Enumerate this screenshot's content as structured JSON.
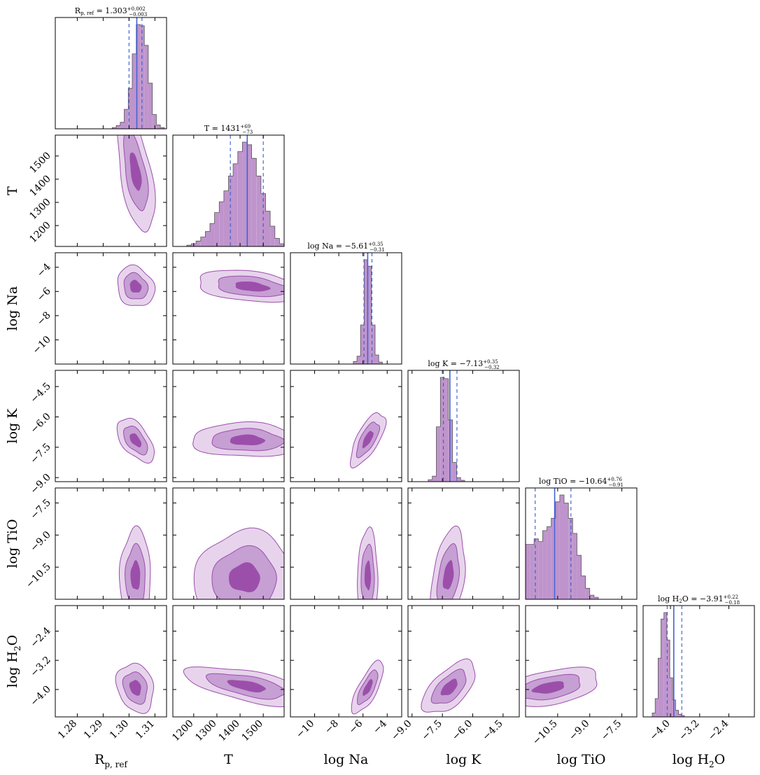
{
  "chart_data": {
    "type": "corner",
    "colors": {
      "hist_fill": "#bf94cc",
      "hist_edge": "#555555",
      "contour_outer": "#e7d4ec",
      "contour_mid": "#c69fd3",
      "contour_inner": "#9b4fab",
      "contour_line": "#9b4fab",
      "median_line": "#4262d6",
      "quantile_line": "#3a5bd0"
    },
    "parameters": [
      {
        "name": "R_p,ref",
        "axis_label_main": "R",
        "axis_label_sub": "p, ref",
        "range": [
          1.2715,
          1.3145
        ],
        "ticks": [
          1.28,
          1.29,
          1.3,
          1.31
        ],
        "tick_labels": [
          "1.28",
          "1.29",
          "1.30",
          "1.31"
        ],
        "median": 1.303,
        "err_plus": 0.002,
        "err_minus": 0.003,
        "title_main": "R",
        "title_sub": "p, ref",
        "title_value": " = 1.303",
        "title_sup": "+0.002",
        "title_subscript": "−0.003",
        "hist": {
          "edges_start": 1.2935,
          "bin_width": 0.00155,
          "counts": [
            2,
            5,
            10,
            30,
            62,
            115,
            160,
            158,
            128,
            70,
            22,
            6,
            2
          ]
        }
      },
      {
        "name": "T",
        "axis_label_main": "T",
        "range": [
          1110,
          1590
        ],
        "ticks": [
          1200,
          1300,
          1400,
          1500
        ],
        "tick_labels": [
          "1200",
          "1300",
          "1400",
          "1500"
        ],
        "median": 1431,
        "err_plus": 69,
        "err_minus": 73,
        "title_value": "T = 1431",
        "title_sup": "+69",
        "title_subscript": "−73",
        "hist": {
          "edges_start": 1170,
          "bin_width": 20,
          "counts": [
            2,
            4,
            8,
            14,
            22,
            34,
            50,
            66,
            82,
            104,
            122,
            140,
            154,
            150,
            130,
            104,
            78,
            52,
            30,
            12,
            4
          ]
        }
      },
      {
        "name": "log Na",
        "axis_label_main": "log Na",
        "range": [
          -12.0,
          -2.8
        ],
        "ticks": [
          -10,
          -8,
          -6,
          -4
        ],
        "tick_labels": [
          "−10",
          "−8",
          "−6",
          "−4"
        ],
        "median": -5.61,
        "err_plus": 0.35,
        "err_minus": 0.31,
        "title_value": "log Na = −5.61",
        "title_sup": "+0.35",
        "title_subscript": "−0.31",
        "hist": {
          "edges_start": -6.8,
          "bin_width": 0.3,
          "counts": [
            4,
            12,
            60,
            160,
            150,
            60,
            14,
            3
          ]
        }
      },
      {
        "name": "log K",
        "axis_label_main": "log K",
        "range": [
          -9.2,
          -3.7
        ],
        "ticks": [
          -9.0,
          -7.5,
          -6.0,
          -4.5
        ],
        "tick_labels": [
          "−9.0",
          "−7.5",
          "−6.0",
          "−4.5"
        ],
        "median": -7.13,
        "err_plus": 0.35,
        "err_minus": 0.32,
        "title_value": "log K = −7.13",
        "title_sup": "+0.35",
        "title_subscript": "−0.32",
        "hist": {
          "edges_start": -8.2,
          "bin_width": 0.2,
          "counts": [
            3,
            8,
            80,
            152,
            150,
            90,
            28,
            6,
            2
          ]
        }
      },
      {
        "name": "log TiO",
        "axis_label_main": "log TiO",
        "range": [
          -12.0,
          -6.8
        ],
        "ticks": [
          -10.5,
          -9.0,
          -7.5
        ],
        "tick_labels": [
          "−10.5",
          "−9.0",
          "−7.5"
        ],
        "median": -10.64,
        "err_plus": 0.76,
        "err_minus": 0.91,
        "title_value": "log TiO = −10.64",
        "title_sup": "+0.76",
        "title_subscript": "−0.91",
        "hist": {
          "edges_start": -12.0,
          "bin_width": 0.2,
          "counts": [
            80,
            80,
            88,
            84,
            100,
            106,
            118,
            142,
            152,
            140,
            118,
            96,
            64,
            34,
            16,
            6,
            3
          ]
        }
      },
      {
        "name": "log H2O",
        "axis_label_main": "log H",
        "axis_label_sub": "2",
        "axis_label_tail": "O",
        "range": [
          -4.75,
          -1.7
        ],
        "ticks": [
          -4.0,
          -3.2,
          -2.4
        ],
        "tick_labels": [
          "−4.0",
          "−3.2",
          "−2.4"
        ],
        "median": -3.91,
        "err_plus": 0.22,
        "err_minus": 0.18,
        "title_value": "log H",
        "title_sub": "2",
        "title_tail": "O = −3.91",
        "title_sup": "+0.22",
        "title_subscript": "−0.18",
        "hist": {
          "edges_start": -4.5,
          "bin_width": 0.08,
          "counts": [
            6,
            28,
            90,
            150,
            160,
            118,
            60,
            26,
            10,
            4,
            2
          ]
        }
      }
    ],
    "density_levels": [
      "outer",
      "mid",
      "inner"
    ],
    "pair_blobs": [
      {
        "row": 1,
        "col": 0,
        "cx": 1.3025,
        "cy": 1431,
        "sx": 0.003,
        "sy": 110,
        "rho": -0.55
      },
      {
        "row": 2,
        "col": 0,
        "cx": 1.3025,
        "cy": -5.6,
        "sx": 0.003,
        "sy": 0.7,
        "rho": -0.15
      },
      {
        "row": 2,
        "col": 1,
        "cx": 1450,
        "cy": -5.6,
        "sx": 100,
        "sy": 0.55,
        "rho": -0.35
      },
      {
        "row": 3,
        "col": 0,
        "cx": 1.3025,
        "cy": -7.15,
        "sx": 0.003,
        "sy": 0.45,
        "rho": -0.55
      },
      {
        "row": 3,
        "col": 1,
        "cx": 1430,
        "cy": -7.15,
        "sx": 100,
        "sy": 0.35,
        "rho": -0.05
      },
      {
        "row": 3,
        "col": 2,
        "cx": -5.6,
        "cy": -7.1,
        "sx": 0.6,
        "sy": 0.55,
        "rho": 0.7
      },
      {
        "row": 4,
        "col": 0,
        "cx": 1.3025,
        "cy": -10.9,
        "sx": 0.0025,
        "sy": 0.9,
        "rho": 0.0
      },
      {
        "row": 4,
        "col": 1,
        "cx": 1420,
        "cy": -11.0,
        "sx": 90,
        "sy": 0.9,
        "rho": 0.0
      },
      {
        "row": 4,
        "col": 2,
        "cx": -5.6,
        "cy": -10.9,
        "sx": 0.35,
        "sy": 0.9,
        "rho": 0.0
      },
      {
        "row": 4,
        "col": 3,
        "cx": -7.2,
        "cy": -10.9,
        "sx": 0.35,
        "sy": 0.9,
        "rho": 0.35
      },
      {
        "row": 5,
        "col": 0,
        "cx": 1.3025,
        "cy": -3.95,
        "sx": 0.003,
        "sy": 0.28,
        "rho": -0.2
      },
      {
        "row": 5,
        "col": 1,
        "cx": 1430,
        "cy": -3.9,
        "sx": 110,
        "sy": 0.22,
        "rho": -0.6
      },
      {
        "row": 5,
        "col": 2,
        "cx": -5.6,
        "cy": -3.95,
        "sx": 0.55,
        "sy": 0.3,
        "rho": 0.75
      },
      {
        "row": 5,
        "col": 3,
        "cx": -7.15,
        "cy": -3.95,
        "sx": 0.55,
        "sy": 0.3,
        "rho": 0.6
      },
      {
        "row": 5,
        "col": 4,
        "cx": -10.9,
        "cy": -3.95,
        "sx": 1.0,
        "sy": 0.22,
        "rho": 0.45
      }
    ]
  }
}
